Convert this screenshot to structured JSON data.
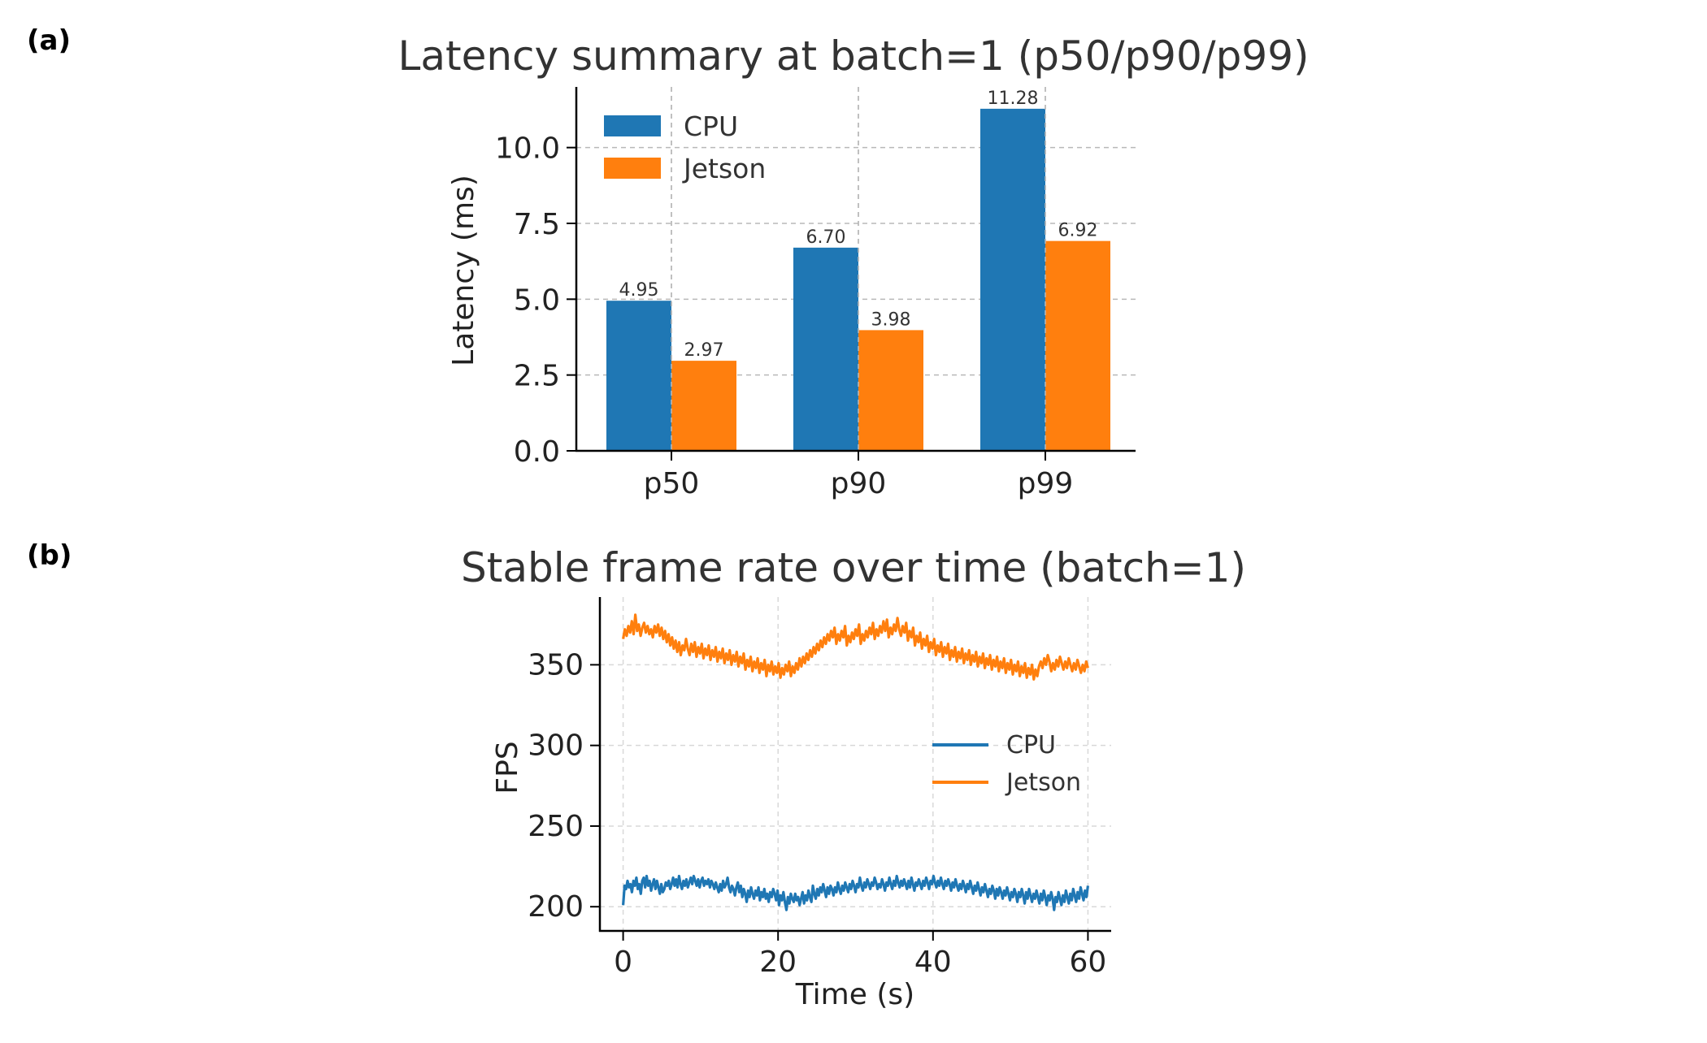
{
  "figure": {
    "panel_a_label": "(a)",
    "panel_b_label": "(b)"
  },
  "chart_data": [
    {
      "type": "bar",
      "title": "Latency summary at batch=1 (p50/p90/p99)",
      "xlabel": "",
      "ylabel": "Latency (ms)",
      "categories": [
        "p50",
        "p90",
        "p99"
      ],
      "series": [
        {
          "name": "CPU",
          "color": "#1f77b4",
          "values": [
            4.95,
            6.7,
            11.28
          ],
          "labels": [
            "4.95",
            "6.70",
            "11.28"
          ]
        },
        {
          "name": "Jetson",
          "color": "#ff7f0e",
          "values": [
            2.97,
            3.98,
            6.92
          ],
          "labels": [
            "2.97",
            "3.98",
            "6.92"
          ]
        }
      ],
      "ylim": [
        0,
        12
      ],
      "yticks": [
        "0.0",
        "2.5",
        "5.0",
        "7.5",
        "10.0"
      ],
      "grid": true,
      "legend": "top-left"
    },
    {
      "type": "line",
      "title": "Stable frame rate over time (batch=1)",
      "xlabel": "Time (s)",
      "ylabel": "FPS",
      "xlim": [
        -3,
        63
      ],
      "ylim": [
        185,
        392
      ],
      "xticks": [
        "0",
        "20",
        "40",
        "60"
      ],
      "yticks": [
        "200",
        "250",
        "300",
        "350"
      ],
      "grid": true,
      "legend": "center-right",
      "series": [
        {
          "name": "CPU",
          "color": "#1f77b4",
          "x_start": 0,
          "x_end": 60,
          "values": [
            201,
            213,
            211,
            216,
            212,
            214,
            209,
            216,
            213,
            218,
            211,
            214,
            208,
            216,
            218,
            212,
            219,
            213,
            216,
            210,
            214,
            217,
            211,
            216,
            212,
            208,
            214,
            209,
            211,
            215,
            213,
            216,
            211,
            214,
            218,
            213,
            217,
            212,
            219,
            214,
            211,
            216,
            213,
            217,
            212,
            215,
            218,
            214,
            219,
            216,
            213,
            217,
            212,
            216,
            218,
            213,
            216,
            214,
            217,
            212,
            216,
            214,
            211,
            215,
            212,
            209,
            214,
            210,
            216,
            212,
            214,
            218,
            212,
            209,
            213,
            211,
            207,
            212,
            215,
            209,
            213,
            206,
            211,
            208,
            203,
            210,
            206,
            212,
            208,
            205,
            210,
            207,
            212,
            204,
            209,
            206,
            211,
            205,
            208,
            203,
            209,
            206,
            211,
            208,
            204,
            210,
            201,
            207,
            204,
            209,
            203,
            198,
            206,
            202,
            208,
            205,
            203,
            208,
            204,
            206,
            201,
            205,
            209,
            202,
            207,
            204,
            210,
            206,
            203,
            213,
            208,
            205,
            211,
            207,
            212,
            209,
            214,
            210,
            206,
            212,
            208,
            213,
            211,
            207,
            212,
            209,
            215,
            211,
            208,
            213,
            210,
            215,
            212,
            209,
            214,
            211,
            216,
            213,
            209,
            214,
            212,
            218,
            213,
            210,
            215,
            212,
            217,
            214,
            211,
            215,
            213,
            218,
            215,
            211,
            214,
            212,
            217,
            214,
            210,
            215,
            213,
            218,
            214,
            211,
            216,
            213,
            219,
            215,
            212,
            216,
            213,
            217,
            214,
            211,
            216,
            212,
            218,
            214,
            210,
            215,
            213,
            217,
            214,
            211,
            216,
            213,
            218,
            215,
            211,
            216,
            214,
            219,
            215,
            212,
            216,
            213,
            218,
            214,
            211,
            216,
            213,
            217,
            214,
            210,
            215,
            212,
            217,
            213,
            210,
            214,
            211,
            216,
            213,
            209,
            214,
            211,
            216,
            212,
            208,
            213,
            210,
            215,
            211,
            207,
            212,
            209,
            214,
            210,
            206,
            211,
            208,
            213,
            210,
            205,
            211,
            207,
            212,
            209,
            205,
            210,
            207,
            212,
            208,
            204,
            209,
            206,
            211,
            208,
            203,
            209,
            206,
            211,
            207,
            202,
            209,
            205,
            211,
            207,
            203,
            208,
            205,
            210,
            206,
            202,
            208,
            204,
            210,
            206,
            201,
            207,
            204,
            209,
            205,
            198,
            206,
            203,
            209,
            205,
            201,
            207,
            203,
            210,
            206,
            202,
            208,
            204,
            211,
            207,
            203,
            209,
            205,
            212,
            208,
            204,
            210,
            206,
            213
          ]
        },
        {
          "name": "Jetson",
          "color": "#ff7f0e",
          "x_start": 0,
          "x_end": 60,
          "values": [
            366,
            372,
            368,
            374,
            370,
            377,
            369,
            381,
            371,
            375,
            368,
            373,
            376,
            370,
            374,
            369,
            372,
            367,
            374,
            370,
            375,
            368,
            373,
            366,
            371,
            364,
            369,
            362,
            367,
            360,
            365,
            358,
            364,
            356,
            362,
            359,
            366,
            360,
            356,
            363,
            358,
            364,
            355,
            361,
            357,
            363,
            354,
            360,
            356,
            362,
            353,
            359,
            355,
            361,
            352,
            358,
            354,
            360,
            351,
            357,
            353,
            359,
            350,
            356,
            352,
            358,
            349,
            355,
            351,
            357,
            347,
            353,
            349,
            355,
            346,
            352,
            348,
            354,
            345,
            351,
            347,
            353,
            343,
            350,
            346,
            352,
            344,
            349,
            345,
            351,
            342,
            348,
            344,
            350,
            346,
            352,
            343,
            349,
            345,
            351,
            347,
            354,
            349,
            355,
            351,
            357,
            353,
            359,
            355,
            361,
            357,
            363,
            359,
            365,
            361,
            367,
            363,
            369,
            365,
            371,
            367,
            373,
            363,
            369,
            365,
            371,
            367,
            374,
            362,
            368,
            364,
            370,
            366,
            372,
            368,
            375,
            363,
            369,
            365,
            371,
            367,
            373,
            369,
            376,
            366,
            372,
            368,
            374,
            370,
            377,
            371,
            378,
            367,
            373,
            369,
            375,
            371,
            379,
            372,
            368,
            374,
            370,
            376,
            365,
            371,
            367,
            373,
            362,
            368,
            364,
            370,
            360,
            366,
            362,
            368,
            358,
            364,
            360,
            366,
            356,
            362,
            358,
            364,
            355,
            361,
            357,
            363,
            353,
            359,
            355,
            361,
            352,
            358,
            354,
            360,
            351,
            357,
            353,
            359,
            350,
            356,
            352,
            358,
            349,
            355,
            351,
            357,
            348,
            354,
            350,
            356,
            347,
            353,
            349,
            355,
            346,
            352,
            348,
            354,
            345,
            351,
            347,
            353,
            344,
            350,
            346,
            352,
            343,
            349,
            345,
            351,
            342,
            348,
            344,
            350,
            341,
            347,
            343,
            349,
            352,
            348,
            354,
            350,
            356,
            352,
            346,
            351,
            347,
            353,
            349,
            355,
            351,
            347,
            352,
            348,
            354,
            350,
            346,
            351,
            347,
            353,
            349,
            345,
            350,
            346,
            352,
            348
          ]
        }
      ]
    }
  ]
}
